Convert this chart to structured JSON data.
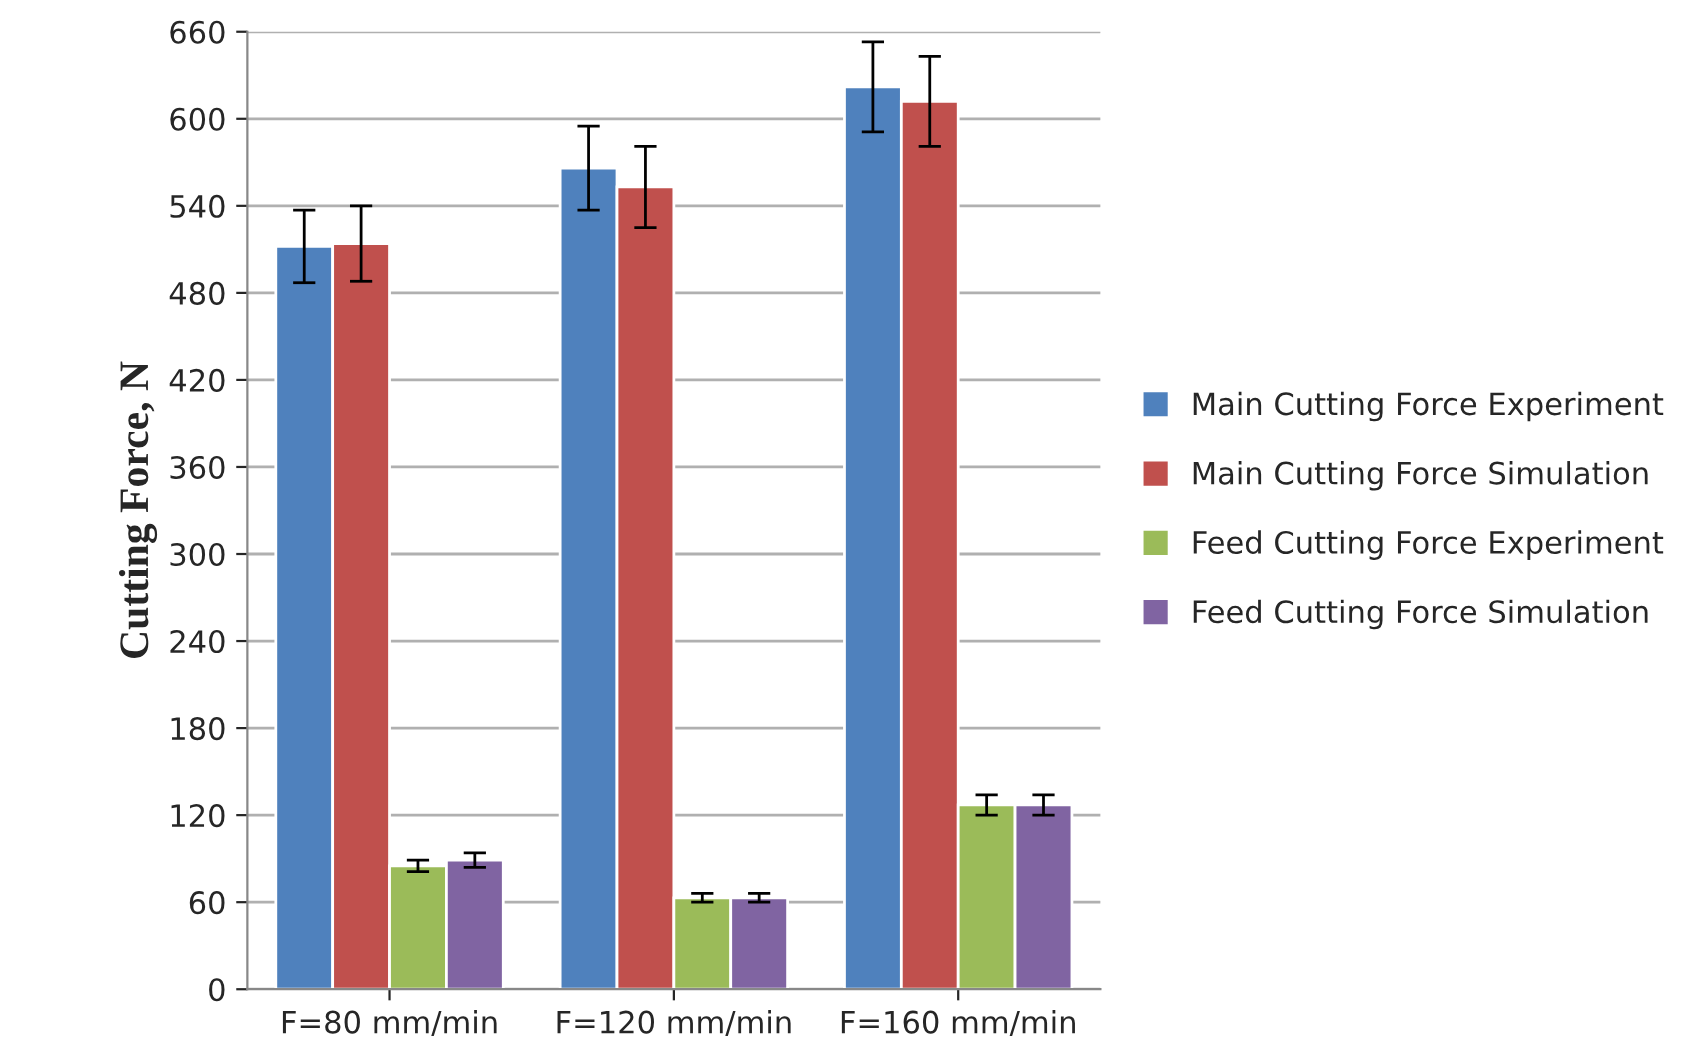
{
  "chart_data": {
    "type": "bar",
    "ylabel": "Cutting Force, N",
    "categories": [
      "F=80 mm/min",
      "F=120 mm/min",
      "F=160 mm/min"
    ],
    "series": [
      {
        "name": "Main Cutting Force Experiment",
        "color": "#4f81bd",
        "values": [
          512,
          566,
          622
        ],
        "errors": [
          25,
          29,
          31
        ]
      },
      {
        "name": "Main Cutting Force Simulation",
        "color": "#c0504d",
        "values": [
          514,
          553,
          612
        ],
        "errors": [
          26,
          28,
          31
        ]
      },
      {
        "name": "Feed Cutting Force Experiment",
        "color": "#9bbb59",
        "values": [
          85,
          63,
          127
        ],
        "errors": [
          4,
          3,
          7
        ]
      },
      {
        "name": "Feed Cutting Force Simulation",
        "color": "#8064a2",
        "values": [
          89,
          63,
          127
        ],
        "errors": [
          5,
          3,
          7
        ]
      }
    ],
    "ylim": [
      0,
      660
    ],
    "yticks": [
      0,
      60,
      120,
      180,
      240,
      300,
      360,
      420,
      480,
      540,
      600,
      660
    ],
    "grid": "y",
    "legend": "right"
  }
}
